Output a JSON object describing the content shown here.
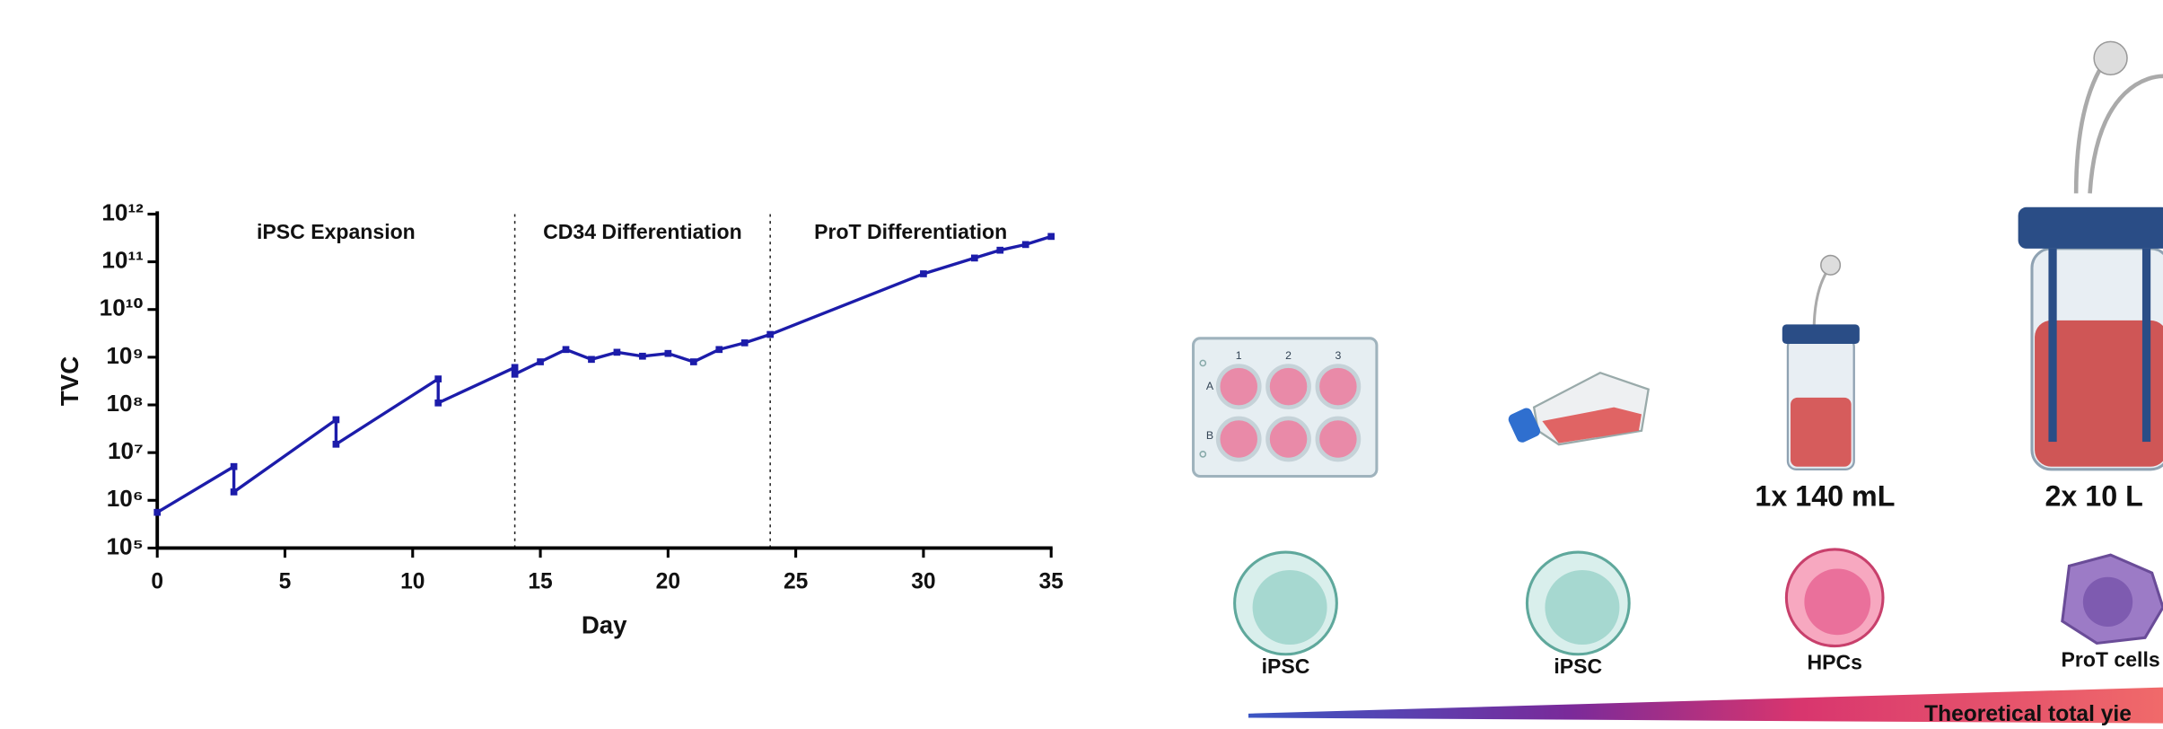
{
  "chart_data": {
    "type": "line",
    "xlabel": "Day",
    "ylabel": "TVC",
    "yscale": "log",
    "color": "#1c1caa",
    "x": [
      0,
      3,
      3,
      7,
      7,
      11,
      11,
      14,
      14,
      15,
      16,
      17,
      18,
      19,
      20,
      21,
      22,
      23,
      24,
      30,
      32,
      33,
      34,
      35
    ],
    "values": [
      560000,
      5100000,
      1500000,
      49000000,
      15000000,
      350000000,
      110000000,
      610000000,
      440000000,
      800000000,
      1450000000,
      900000000,
      1270000000,
      1050000000,
      1200000000,
      800000000,
      1450000000,
      2000000000,
      3000000000,
      56000000000,
      120000000000,
      175000000000,
      230000000000,
      340000000000
    ],
    "xlim": [
      0,
      35
    ],
    "xticks": [
      0,
      5,
      10,
      15,
      20,
      25,
      30,
      35
    ],
    "ylim": [
      100000,
      1000000000000
    ],
    "yticks": [
      {
        "value": 100000,
        "label": "10⁵"
      },
      {
        "value": 1000000,
        "label": "10⁶"
      },
      {
        "value": 10000000,
        "label": "10⁷"
      },
      {
        "value": 100000000,
        "label": "10⁸"
      },
      {
        "value": 1000000000,
        "label": "10⁹"
      },
      {
        "value": 10000000000,
        "label": "10¹⁰"
      },
      {
        "value": 100000000000,
        "label": "10¹¹"
      },
      {
        "value": 1000000000000,
        "label": "10¹²"
      }
    ],
    "phase_lines": [
      14,
      24
    ],
    "annotations": [
      "iPSC Expansion",
      "CD34 Differentiation",
      "ProT Differentiation"
    ]
  },
  "illustration": {
    "plate_columns": [
      "1",
      "2",
      "3"
    ],
    "plate_rows": [
      "A",
      "B"
    ],
    "vessels": [
      "1x 140 mL",
      "2x 10 L"
    ],
    "cells": [
      "iPSC",
      "iPSC",
      "HPCs",
      "ProT cells"
    ],
    "yield_label": "Theoretical total yie"
  }
}
